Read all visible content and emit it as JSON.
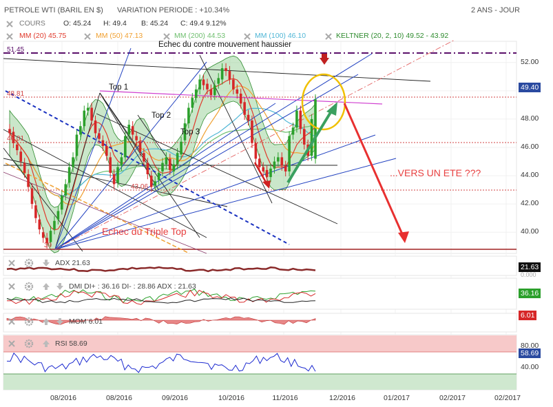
{
  "header": {
    "instrument": "PETROLE WTI (BARIL EN $)",
    "variation": "VARIATION PERIODE : +10.34%",
    "period": "2 ANS - JOUR"
  },
  "legend": {
    "cours": "COURS",
    "open": "O: 45.24",
    "high": "H: 49.4",
    "low": "B: 45.24",
    "close": "C: 49.4 9.12%",
    "mm20": "MM (20) 45.75",
    "mm50": "MM (50) 47.13",
    "mm200": "MM (200) 44.53",
    "mm100": "MM (100) 46.10",
    "keltner": "KELTNER (20, 2, 10) 49.52 - 43.92"
  },
  "colors": {
    "mm20": "#e0392b",
    "mm50": "#f0a030",
    "mm200": "#6fbf6f",
    "mm100": "#4fb6d6",
    "keltner": "#2e8b2e",
    "candle_up": "#2ca02c",
    "candle_down": "#d62728"
  },
  "annotations": {
    "top1": "Top 1",
    "top2": "Top 2",
    "top3": "Top 3",
    "echec_contre": "Echec du contre mouvement haussier",
    "echec_triple": "Echec du Triple Top",
    "vers_ete": "...VERS UN ETE ???",
    "level_high": "51.45",
    "level_mid": "48.81",
    "level_46": "46.01",
    "level_43": "43.06",
    "level_low": "39"
  },
  "price_tag": "49.40",
  "panels": {
    "adx": {
      "label": "ADX 21.63",
      "value": "21.63",
      "zero": "0.000"
    },
    "dmi": {
      "label": "DMI DI+ : 36.16 DI- : 28.86 ADX : 21.63",
      "value": "36.16"
    },
    "mom": {
      "label": "MOM 6.01",
      "value": "6.01"
    },
    "rsi": {
      "label": "RSI 58.69",
      "value": "58.69",
      "t80": "80.00",
      "t40": "40.00"
    }
  },
  "chart_data": {
    "type": "candlestick",
    "title": "PETROLE WTI (BARIL EN $)",
    "ylim": [
      38.5,
      53.5
    ],
    "yticks": [
      "52.00",
      "50.00",
      "48.00",
      "46.00",
      "44.00",
      "42.00",
      "40.00"
    ],
    "x_labels": [
      "08/2016",
      "08/2016",
      "09/2016",
      "10/2016",
      "11/2016",
      "12/2016",
      "01/2017",
      "02/2017",
      "02/2017"
    ],
    "closes": [
      47.0,
      46.3,
      45.8,
      45.0,
      44.2,
      43.2,
      42.0,
      41.0,
      40.2,
      39.6,
      39.2,
      40.1,
      40.8,
      41.5,
      42.6,
      43.4,
      44.6,
      45.3,
      46.9,
      47.5,
      48.6,
      48.8,
      47.9,
      47.0,
      46.6,
      46.1,
      45.4,
      44.2,
      43.4,
      44.6,
      45.3,
      46.8,
      47.6,
      46.9,
      46.5,
      45.7,
      45.0,
      44.1,
      43.2,
      43.6,
      44.2,
      44.9,
      45.3,
      44.4,
      44.8,
      45.6,
      46.4,
      47.7,
      48.8,
      49.5,
      50.1,
      50.8,
      50.4,
      50.1,
      49.7,
      50.4,
      50.9,
      51.6,
      51.4,
      50.8,
      50.1,
      49.8,
      49.1,
      48.3,
      47.9,
      46.3,
      45.2,
      44.6,
      44.3,
      43.9,
      44.5,
      45.0,
      45.3,
      44.7,
      44.3,
      46.8,
      47.4,
      48.6,
      47.3,
      46.2,
      45.4,
      48.0,
      49.4
    ],
    "opens": [
      47.3,
      47.1,
      46.2,
      45.7,
      44.9,
      44.1,
      43.1,
      41.9,
      40.9,
      40.0,
      39.6,
      39.3,
      40.2,
      40.9,
      41.6,
      42.6,
      43.5,
      44.6,
      45.4,
      46.9,
      47.5,
      48.6,
      48.8,
      47.9,
      47.0,
      46.5,
      46.1,
      45.3,
      44.1,
      43.5,
      44.7,
      45.3,
      46.9,
      47.5,
      46.8,
      46.4,
      45.6,
      44.9,
      44.0,
      43.3,
      43.7,
      44.3,
      44.8,
      45.2,
      44.3,
      44.8,
      45.5,
      46.5,
      47.7,
      48.8,
      49.5,
      50.1,
      50.8,
      50.5,
      50.1,
      49.7,
      50.5,
      50.8,
      51.6,
      51.4,
      50.8,
      50.1,
      49.8,
      49.2,
      48.3,
      47.9,
      46.3,
      45.2,
      44.6,
      44.4,
      43.9,
      44.5,
      45.0,
      45.3,
      44.7,
      44.3,
      46.9,
      47.4,
      48.6,
      47.3,
      46.2,
      45.4,
      45.2
    ]
  }
}
